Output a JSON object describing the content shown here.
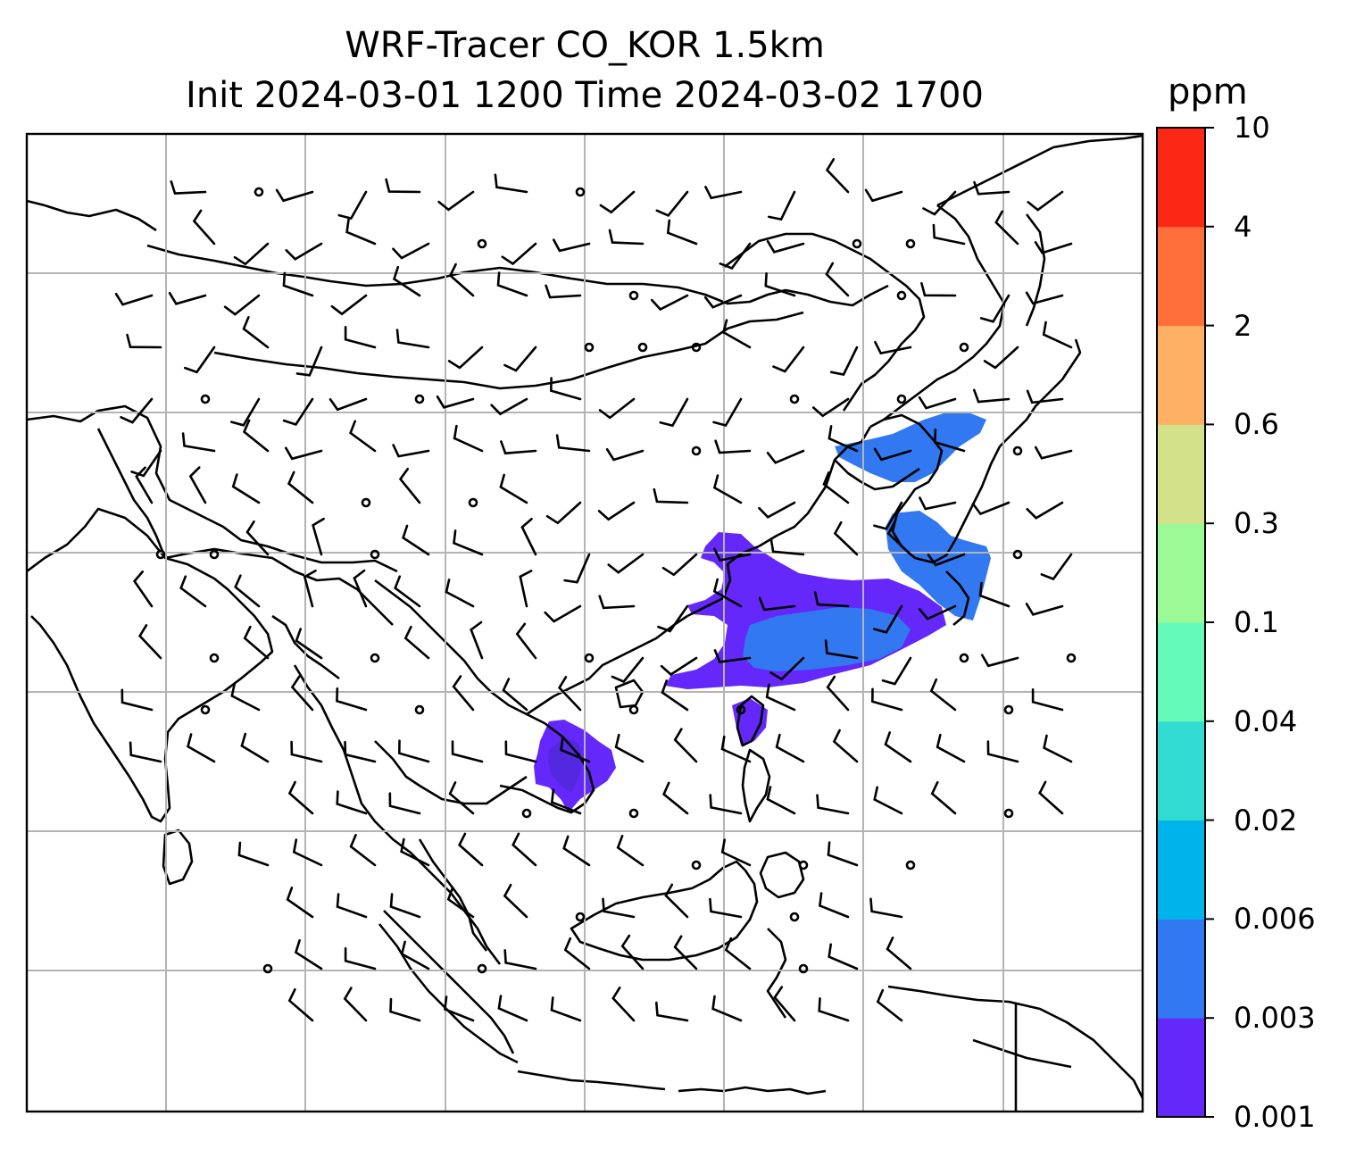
{
  "title_line1": "WRF-Tracer CO_KOR 1.5km",
  "title_line2": "Init 2024-03-01 1200 Time 2024-03-02 1700",
  "colorbar": {
    "unit": "ppm",
    "levels": [
      "0.001",
      "0.003",
      "0.006",
      "0.02",
      "0.04",
      "0.1",
      "0.3",
      "0.6",
      "2",
      "4",
      "10"
    ],
    "colors": [
      "#6428fa",
      "#3278f0",
      "#00b4eb",
      "#32dcd2",
      "#64faba",
      "#9bfa96",
      "#d2e18a",
      "#feb064",
      "#fe6f3c",
      "#fa2814"
    ]
  },
  "map": {
    "frame_color": "#000000",
    "grid_color": "#b4b4b4",
    "coastline_color": "#000000",
    "barb_color": "#000000"
  }
}
